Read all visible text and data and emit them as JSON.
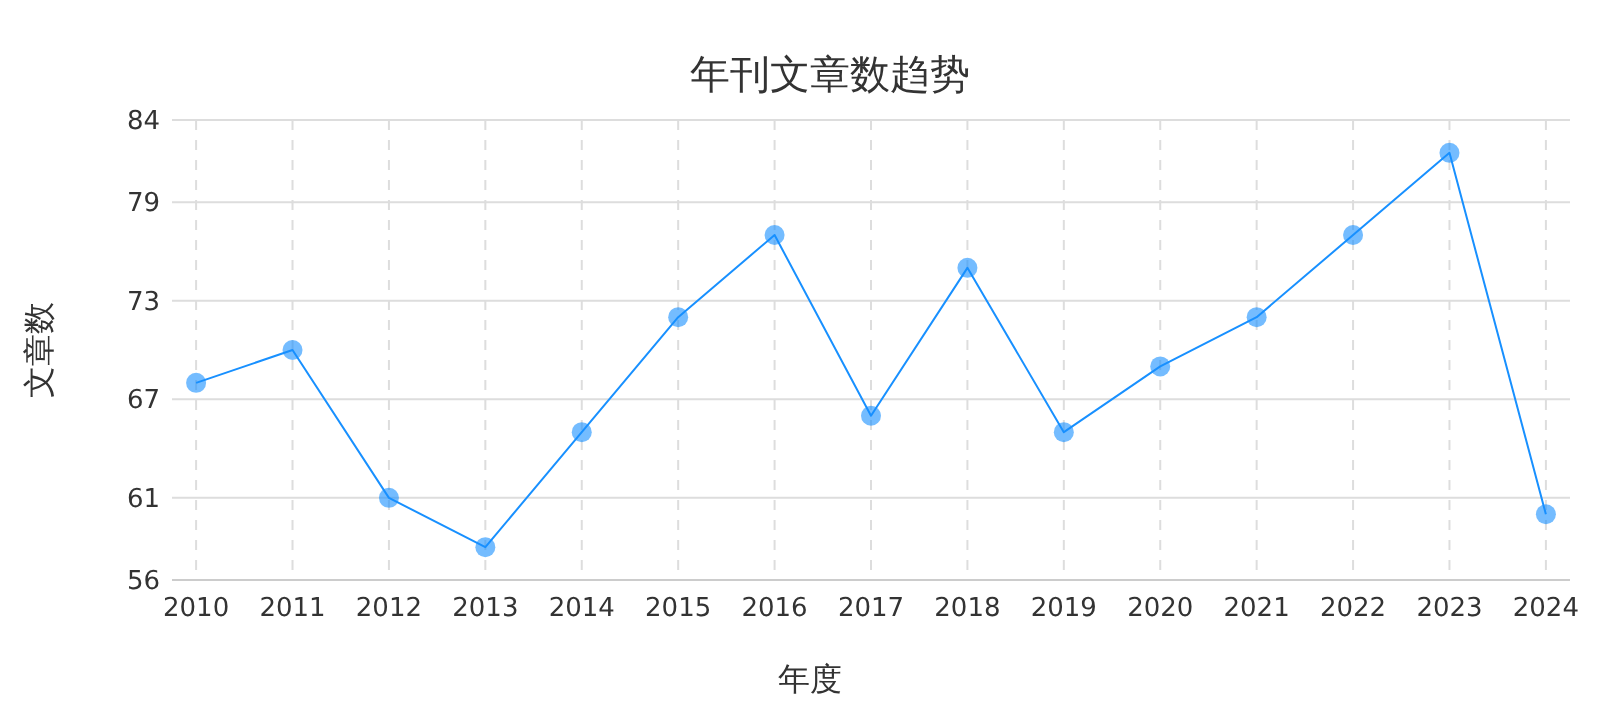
{
  "chart_data": {
    "type": "line",
    "title": "年刊文章数趋势",
    "xlabel": "年度",
    "ylabel": "文章数",
    "categories": [
      "2010",
      "2011",
      "2012",
      "2013",
      "2014",
      "2015",
      "2016",
      "2017",
      "2018",
      "2019",
      "2020",
      "2021",
      "2022",
      "2023",
      "2024"
    ],
    "series": [
      {
        "color": "#1890ff",
        "values": [
          68,
          70,
          61,
          58,
          65,
          72,
          77,
          66,
          75,
          65,
          69,
          72,
          77,
          82,
          60
        ]
      }
    ],
    "ylim": [
      56,
      84
    ],
    "yticks": [
      56,
      61,
      67,
      73,
      79,
      84
    ],
    "grid": true,
    "marker": "circle",
    "line_style": "solid"
  }
}
